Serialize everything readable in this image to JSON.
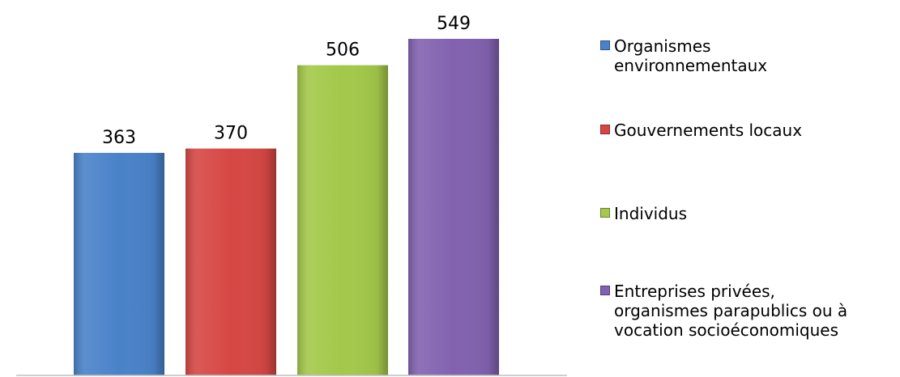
{
  "chart_data": {
    "type": "bar",
    "title": "",
    "xlabel": "",
    "ylabel": "",
    "ylim": [
      0,
      600
    ],
    "grid": false,
    "legend_position": "right",
    "categories": [
      "Organismes\nenvironnementaux",
      "Gouvernements locaux",
      "Individus",
      "Entreprises privées,\norganismes parapublics ou à\nvocation socioéconomiques"
    ],
    "values": [
      363,
      370,
      506,
      549
    ],
    "colors": [
      "#4a82c9",
      "#d64744",
      "#a3c84a",
      "#8262b0"
    ]
  }
}
